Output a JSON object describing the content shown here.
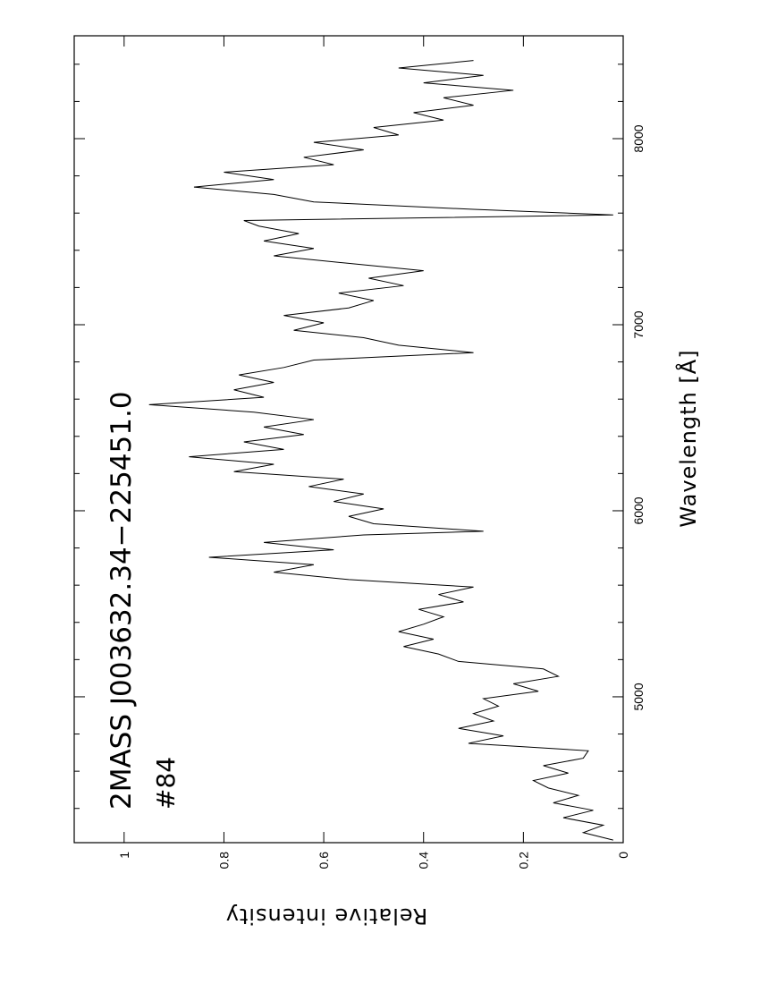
{
  "chart_data": {
    "type": "line",
    "title": "2MASS J003632.34−225451.0",
    "subtitle": "#84",
    "x_label": "Wavelength   [Å]",
    "y_label": "Relative intensity",
    "xlim": [
      4216,
      8553
    ],
    "xticks": [
      5000,
      6000,
      7000,
      8000
    ],
    "xminor": [
      4400,
      4600,
      4800,
      5200,
      5400,
      5600,
      5800,
      6200,
      6400,
      6600,
      6800,
      7200,
      7400,
      7600,
      7800,
      8200,
      8400
    ],
    "ylim": [
      0,
      1.1
    ],
    "yticks": [
      0,
      0.2,
      0.4,
      0.6,
      0.8,
      1
    ],
    "color": "#000000",
    "x": [
      4230,
      4270,
      4310,
      4350,
      4390,
      4430,
      4470,
      4510,
      4550,
      4590,
      4630,
      4670,
      4710,
      4750,
      4790,
      4830,
      4870,
      4910,
      4950,
      4990,
      5030,
      5070,
      5110,
      5150,
      5190,
      5230,
      5270,
      5310,
      5350,
      5390,
      5430,
      5470,
      5510,
      5550,
      5590,
      5630,
      5670,
      5710,
      5750,
      5790,
      5830,
      5870,
      5890,
      5930,
      5970,
      6010,
      6050,
      6090,
      6130,
      6170,
      6210,
      6250,
      6290,
      6330,
      6370,
      6410,
      6450,
      6490,
      6530,
      6570,
      6610,
      6650,
      6690,
      6730,
      6770,
      6810,
      6850,
      6890,
      6930,
      6970,
      7010,
      7050,
      7090,
      7130,
      7170,
      7210,
      7250,
      7290,
      7330,
      7370,
      7410,
      7450,
      7490,
      7530,
      7560,
      7590,
      7620,
      7660,
      7700,
      7740,
      7780,
      7820,
      7860,
      7900,
      7940,
      7980,
      8020,
      8060,
      8100,
      8140,
      8180,
      8220,
      8260,
      8300,
      8340,
      8380,
      8420
    ],
    "values": [
      0.02,
      0.08,
      0.04,
      0.12,
      0.06,
      0.14,
      0.09,
      0.15,
      0.18,
      0.11,
      0.16,
      0.08,
      0.07,
      0.31,
      0.24,
      0.33,
      0.26,
      0.3,
      0.25,
      0.28,
      0.17,
      0.22,
      0.13,
      0.16,
      0.33,
      0.37,
      0.44,
      0.38,
      0.45,
      0.4,
      0.36,
      0.41,
      0.32,
      0.37,
      0.3,
      0.55,
      0.7,
      0.62,
      0.83,
      0.58,
      0.72,
      0.52,
      0.28,
      0.5,
      0.55,
      0.48,
      0.58,
      0.52,
      0.63,
      0.56,
      0.78,
      0.7,
      0.87,
      0.68,
      0.76,
      0.64,
      0.72,
      0.62,
      0.74,
      0.95,
      0.72,
      0.78,
      0.7,
      0.77,
      0.68,
      0.62,
      0.3,
      0.45,
      0.52,
      0.66,
      0.6,
      0.68,
      0.55,
      0.5,
      0.57,
      0.44,
      0.51,
      0.4,
      0.55,
      0.7,
      0.62,
      0.72,
      0.65,
      0.73,
      0.76,
      0.02,
      0.3,
      0.62,
      0.7,
      0.86,
      0.7,
      0.8,
      0.58,
      0.64,
      0.52,
      0.62,
      0.45,
      0.5,
      0.36,
      0.42,
      0.3,
      0.36,
      0.22,
      0.4,
      0.28,
      0.45,
      0.3
    ]
  }
}
